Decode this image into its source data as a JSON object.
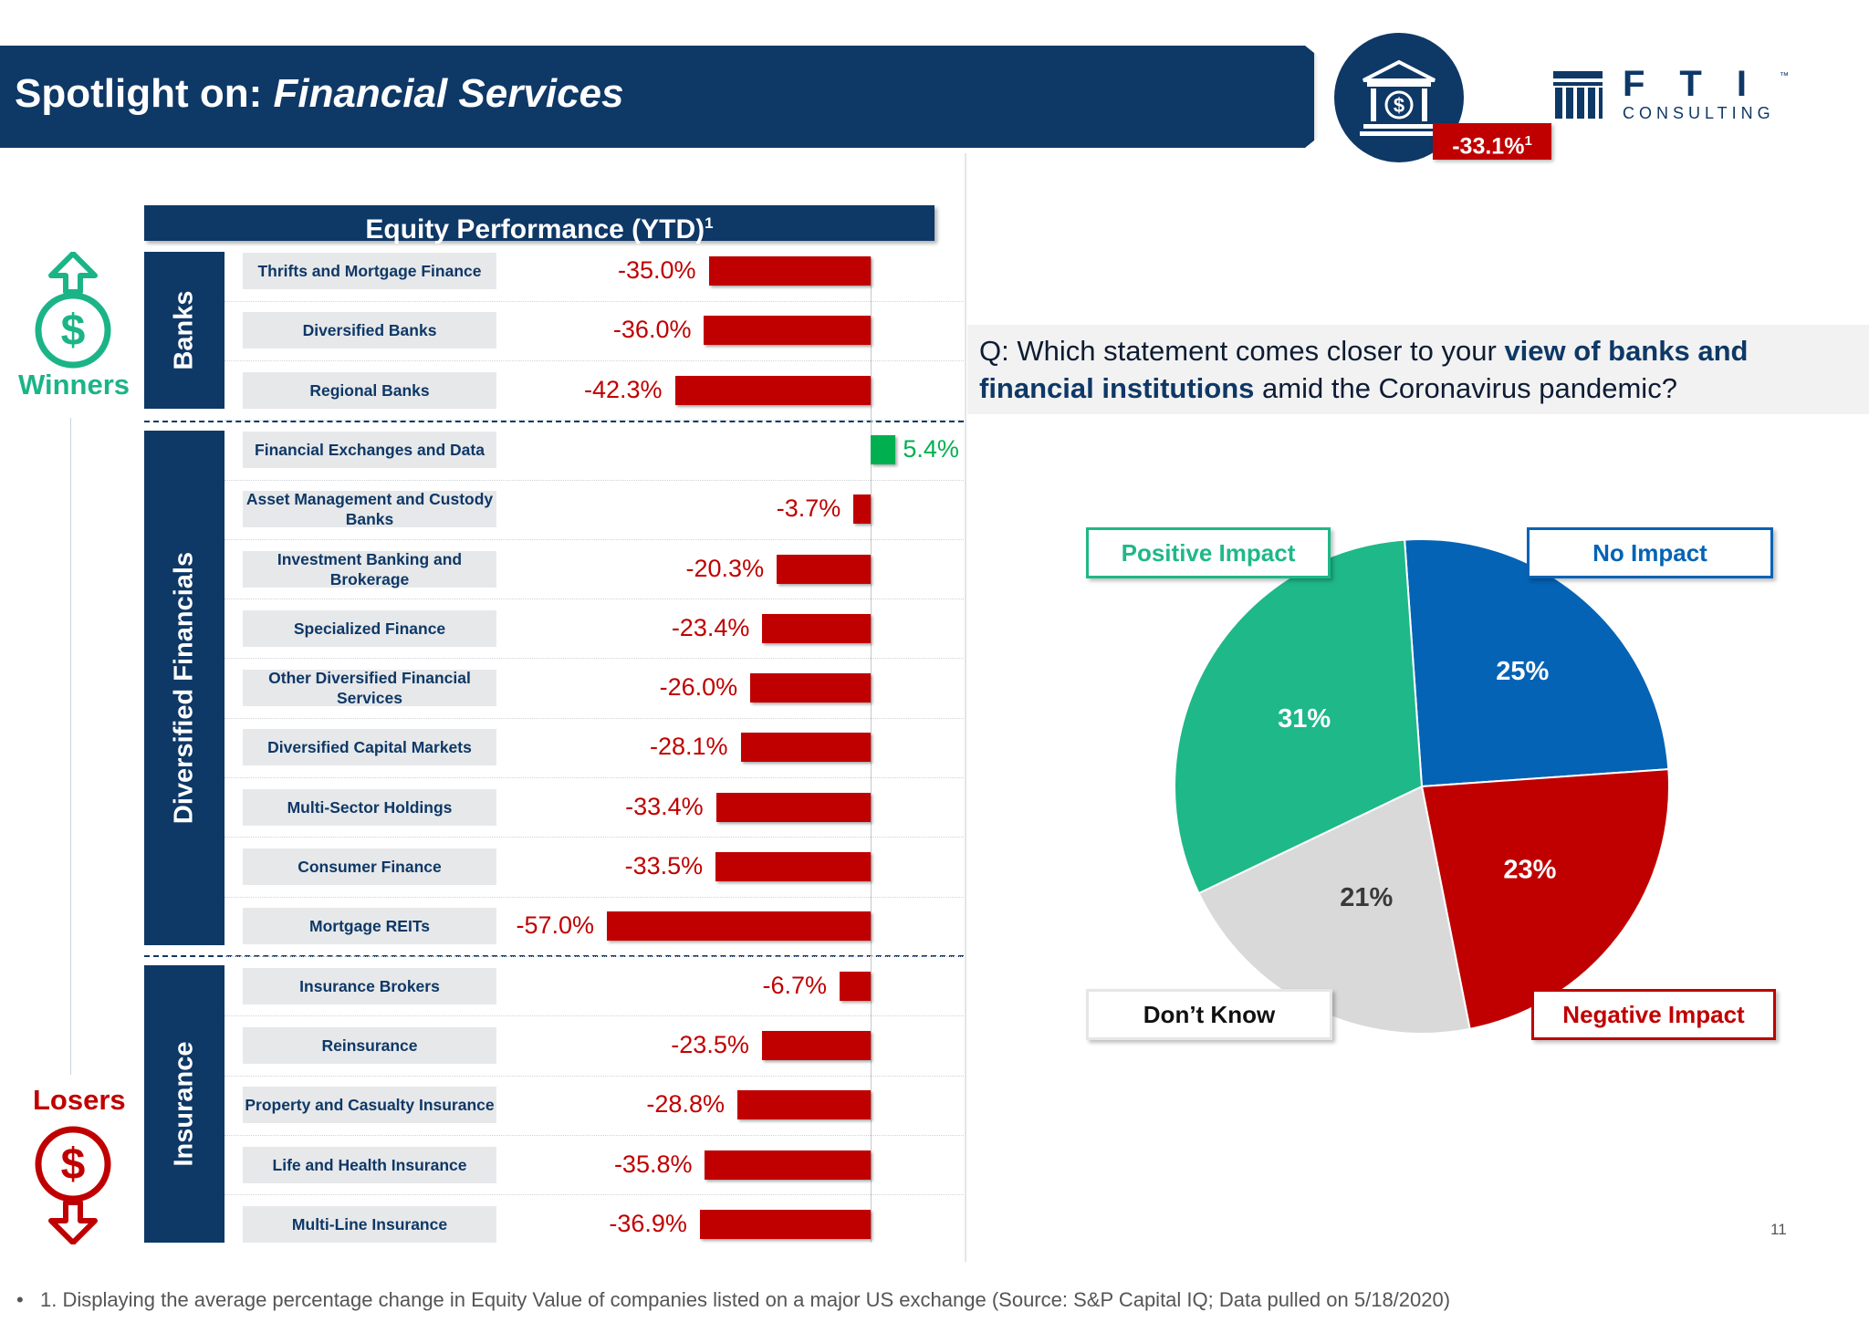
{
  "header": {
    "title_prefix": "Spotlight on:",
    "title_emphasis": "Financial Services",
    "badge_value": "-33.1%",
    "badge_note": "1"
  },
  "logo": {
    "letters": "FTI",
    "tm": "™",
    "subtitle": "CONSULTING"
  },
  "equity": {
    "title": "Equity Performance (YTD)",
    "title_note": "1"
  },
  "sections": [
    {
      "label": "Banks"
    },
    {
      "label": "Diversified Financials"
    },
    {
      "label": "Insurance"
    }
  ],
  "side": {
    "winners": "Winners",
    "losers": "Losers"
  },
  "chart_data": [
    {
      "type": "bar",
      "title": "Equity Performance (YTD)",
      "orientation": "horizontal",
      "categories": [
        "Thrifts and Mortgage Finance",
        "Diversified Banks",
        "Regional Banks",
        "Financial Exchanges and Data",
        "Asset Management and Custody Banks",
        "Investment Banking and Brokerage",
        "Specialized Finance",
        "Other Diversified Financial Services",
        "Diversified Capital Markets",
        "Multi-Sector Holdings",
        "Consumer Finance",
        "Mortgage REITs",
        "Insurance Brokers",
        "Reinsurance",
        "Property and Casualty Insurance",
        "Life and Health Insurance",
        "Multi-Line Insurance"
      ],
      "groups": [
        "Banks",
        "Banks",
        "Banks",
        "Diversified Financials",
        "Diversified Financials",
        "Diversified Financials",
        "Diversified Financials",
        "Diversified Financials",
        "Diversified Financials",
        "Diversified Financials",
        "Diversified Financials",
        "Diversified Financials",
        "Insurance",
        "Insurance",
        "Insurance",
        "Insurance",
        "Insurance"
      ],
      "values": [
        -35.0,
        -36.0,
        -42.3,
        5.4,
        -3.7,
        -20.3,
        -23.4,
        -26.0,
        -28.1,
        -33.4,
        -33.5,
        -57.0,
        -6.7,
        -23.5,
        -28.8,
        -35.8,
        -36.9
      ],
      "value_labels": [
        "-35.0%",
        "-36.0%",
        "-42.3%",
        "5.4%",
        "-3.7%",
        "-20.3%",
        "-23.4%",
        "-26.0%",
        "-28.1%",
        "-33.4%",
        "-33.5%",
        "-57.0%",
        "-6.7%",
        "-23.5%",
        "-28.8%",
        "-35.8%",
        "-36.9%"
      ],
      "unit": "%",
      "colors": {
        "negative": "#c00000",
        "positive": "#00b050"
      }
    },
    {
      "type": "pie",
      "title": "",
      "slices": [
        {
          "label": "No Impact",
          "value": 25,
          "value_label": "25%",
          "color": "#0563b5"
        },
        {
          "label": "Negative Impact",
          "value": 23,
          "value_label": "23%",
          "color": "#c00000"
        },
        {
          "label": "Don’t Know",
          "value": 21,
          "value_label": "21%",
          "color": "#d9d9d9"
        },
        {
          "label": "Positive Impact",
          "value": 31,
          "value_label": "31%",
          "color": "#1fb888"
        }
      ]
    }
  ],
  "question": {
    "prefix": "Q: Which statement comes closer to your",
    "emphasis": "view of banks and financial institutions",
    "suffix": "amid the Coronavirus pandemic?"
  },
  "page_number": "11",
  "footnote": "1. Displaying the average percentage change in Equity Value of companies listed on a major US exchange (Source: S&P Capital IQ; Data pulled on 5/18/2020)",
  "footnote_bullet": "•"
}
